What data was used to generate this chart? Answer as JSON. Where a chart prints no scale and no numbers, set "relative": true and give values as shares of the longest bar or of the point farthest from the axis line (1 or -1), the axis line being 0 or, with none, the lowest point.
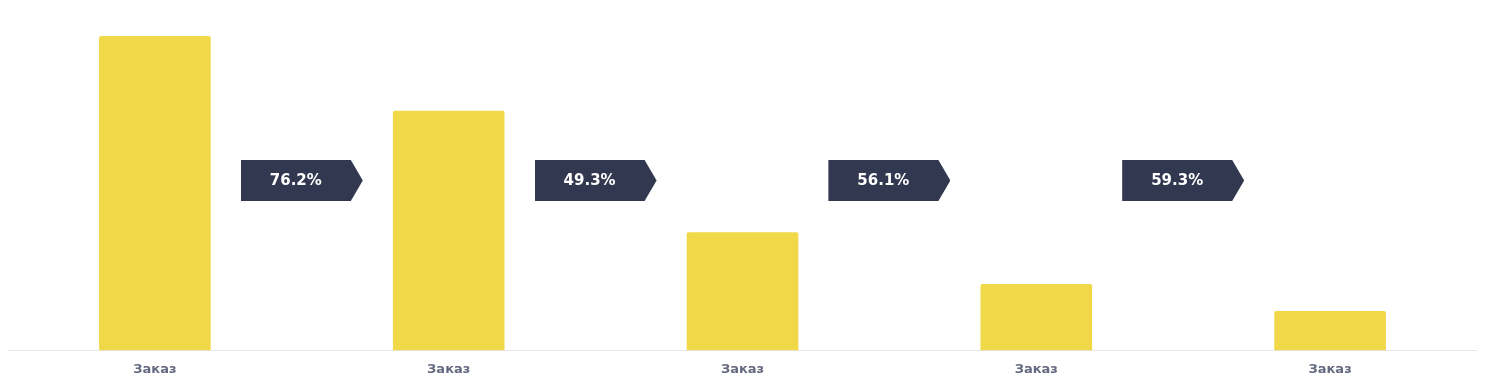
{
  "chart_data": {
    "type": "bar",
    "relative": true,
    "categories": [
      "Заказ",
      "Заказ",
      "Заказ",
      "Заказ",
      "Заказ"
    ],
    "values": [
      1,
      0.762,
      0.376,
      0.211,
      0.125
    ],
    "color": "#f0d848",
    "annotations": [
      "76.2%",
      "49.3%",
      "56.1%",
      "59.3%"
    ],
    "legend": false
  }
}
